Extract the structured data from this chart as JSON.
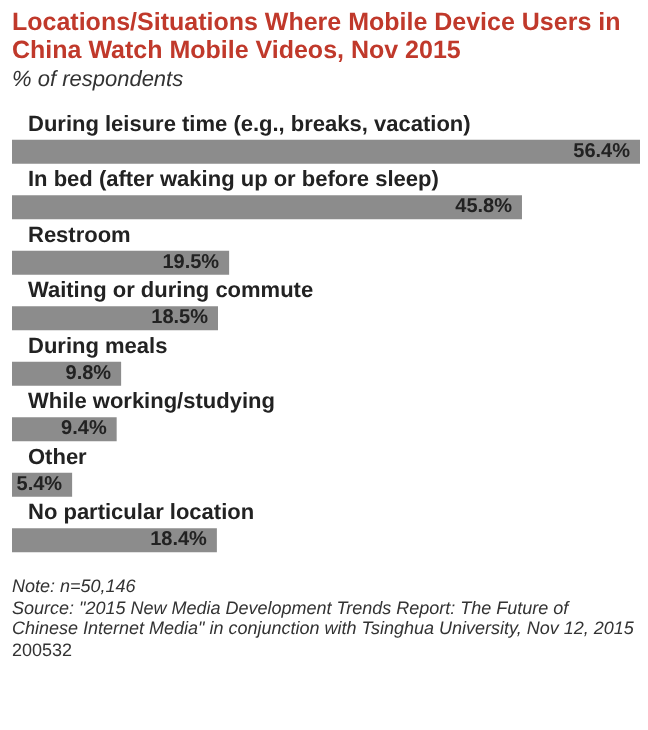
{
  "chart_data": {
    "type": "bar",
    "orientation": "horizontal",
    "title": "Locations/Situations Where Mobile Device Users in China Watch Mobile Videos, Nov 2015",
    "subtitle": "% of respondents",
    "categories": [
      "During leisure time (e.g., breaks, vacation)",
      "In bed (after waking up or before sleep)",
      "Restroom",
      "Waiting or during commute",
      "During meals",
      "While working/studying",
      "Other",
      "No particular location"
    ],
    "values": [
      56.4,
      45.8,
      19.5,
      18.5,
      9.8,
      9.4,
      5.4,
      18.4
    ],
    "value_labels": [
      "56.4%",
      "45.8%",
      "19.5%",
      "18.5%",
      "9.8%",
      "9.4%",
      "5.4%",
      "18.4%"
    ],
    "color": "#8c8c8c",
    "annotations": [
      "Note: n=50,146",
      "Source: \"2015 New Media Development Trends Report: The Future of Chinese Internet Media\" in conjunction with Tsinghua University, Nov 12, 2015",
      "200532"
    ]
  }
}
